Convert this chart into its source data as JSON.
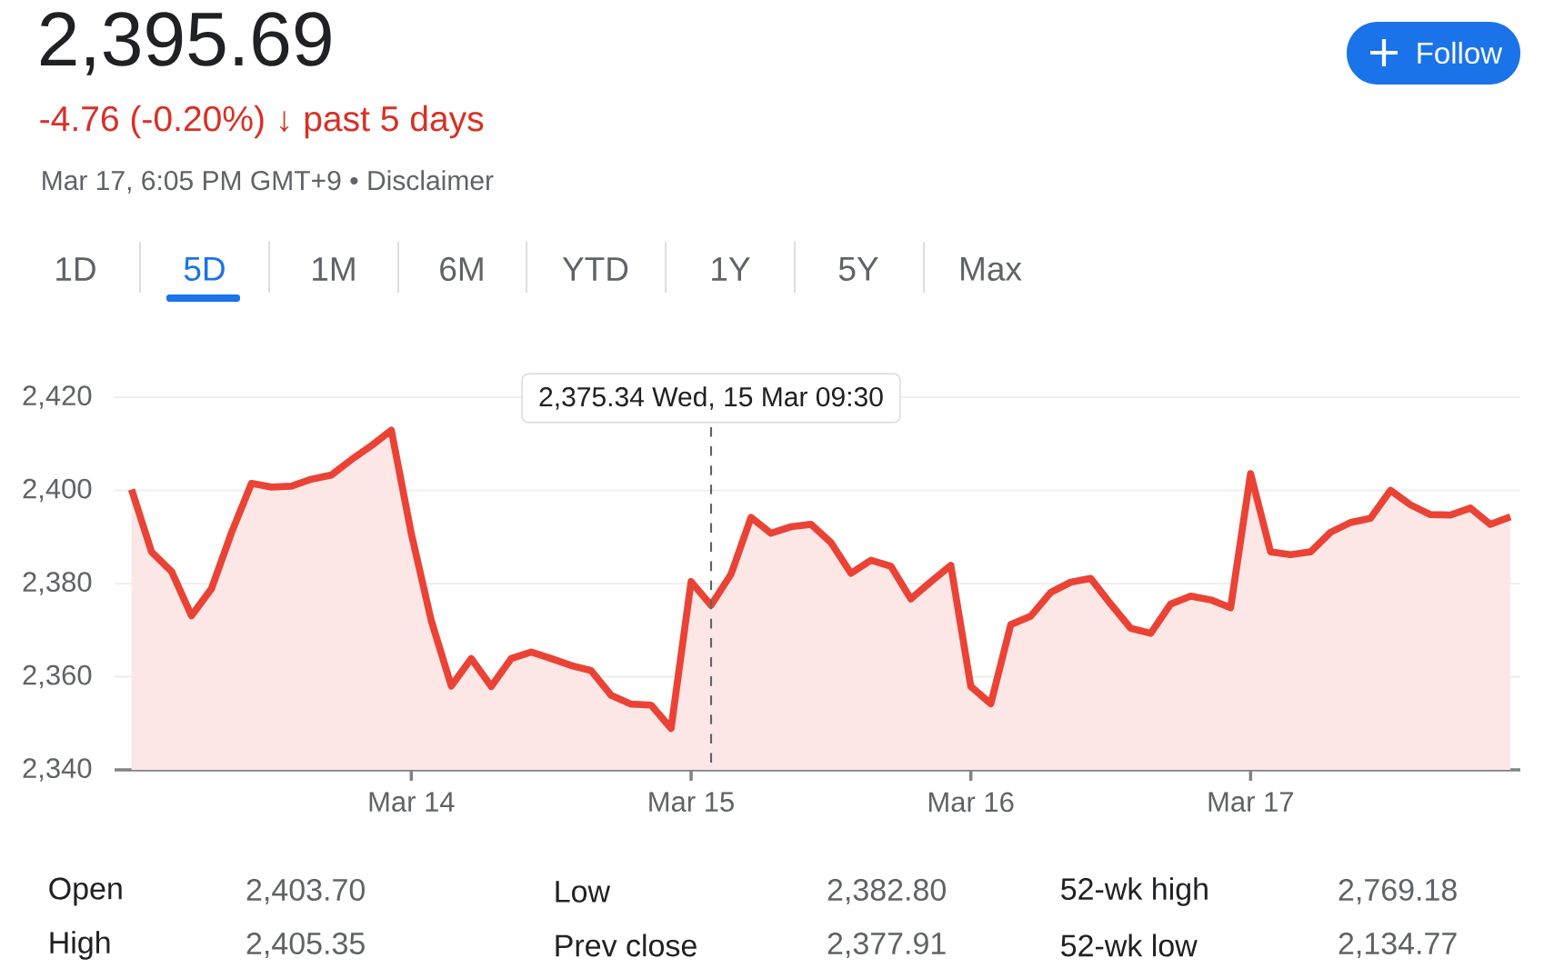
{
  "chart_data": {
    "type": "area",
    "title": "2,395.69",
    "subtitle": "-4.76 (-0.20%) ↓ past 5 days",
    "annotations": [
      "Mar 17, 6:05 PM GMT+9 • Disclaimer",
      "Follow",
      "1D",
      "5D",
      "1M",
      "6M",
      "YTD",
      "1Y",
      "5Y",
      "Max",
      "Open",
      "2,403.70",
      "High",
      "2,405.35",
      "Low",
      "2,382.80",
      "Prev close",
      "2,377.91",
      "52-wk high",
      "2,769.18",
      "52-wk low",
      "2,134.77",
      "2,375.34  Wed, 15 Mar 09:30"
    ],
    "categories": [
      null,
      null,
      null,
      null,
      null,
      null,
      null,
      null,
      null,
      null,
      null,
      null,
      null,
      null,
      "Mar 14",
      null,
      null,
      null,
      null,
      null,
      null,
      null,
      null,
      null,
      null,
      null,
      null,
      null,
      "Mar 15",
      null,
      null,
      null,
      null,
      null,
      null,
      null,
      null,
      null,
      null,
      null,
      null,
      null,
      "Mar 16",
      null,
      null,
      null,
      null,
      null,
      null,
      null,
      null,
      null,
      null,
      null,
      null,
      null,
      "Mar 17",
      null,
      null,
      null,
      null,
      null,
      null,
      null,
      null,
      null,
      null,
      null,
      null,
      null
    ],
    "values": [
      2400.2,
      2386.8,
      2382.6,
      2373.1,
      2378.9,
      2390.9,
      2401.5,
      2400.7,
      2400.9,
      2402.4,
      2403.3,
      2406.6,
      2409.6,
      2412.9,
      2390.7,
      2372.0,
      2358.0,
      2363.9,
      2357.9,
      2363.9,
      2365.3,
      2363.9,
      2362.4,
      2361.3,
      2356.0,
      2354.1,
      2353.9,
      2348.9,
      2380.4,
      2375.34,
      2382.0,
      2394.2,
      2390.8,
      2392.2,
      2392.7,
      2388.8,
      2382.2,
      2385.0,
      2383.7,
      2376.7,
      2380.4,
      2383.9,
      2357.9,
      2354.2,
      2371.2,
      2373.0,
      2378.1,
      2380.3,
      2381.1,
      2375.6,
      2370.4,
      2369.3,
      2375.6,
      2377.3,
      2376.5,
      2374.8,
      2403.6,
      2386.8,
      2386.2,
      2386.8,
      2391.0,
      2393.1,
      2394.0,
      2400.0,
      2396.9,
      2394.8,
      2394.7,
      2396.2,
      2392.7,
      2394.3
    ],
    "color": "#ea4335",
    "ylim": [
      2340,
      2420
    ],
    "yticks": [
      {
        "value": 2340,
        "label": "2,340"
      },
      {
        "value": 2360,
        "label": "2,360"
      },
      {
        "value": 2380,
        "label": "2,380"
      },
      {
        "value": 2400,
        "label": "2,400"
      },
      {
        "value": 2420,
        "label": "2,420"
      }
    ],
    "grid": "y"
  }
}
